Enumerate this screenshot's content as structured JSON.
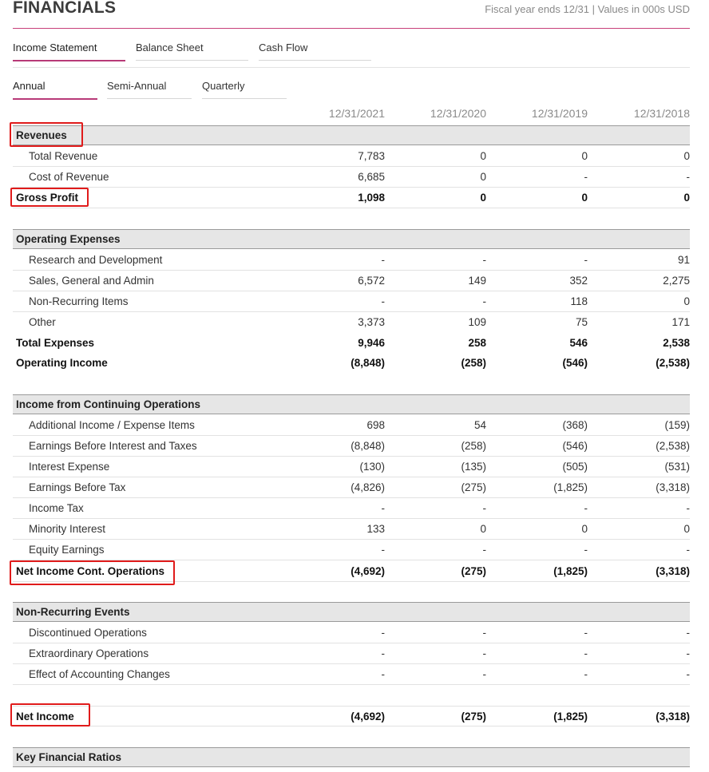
{
  "header": {
    "title": "FINANCIALS",
    "fiscal_note": "Fiscal year ends 12/31 | Values in 000s USD"
  },
  "statement_tabs": [
    {
      "label": "Income Statement",
      "active": true
    },
    {
      "label": "Balance Sheet",
      "active": false
    },
    {
      "label": "Cash Flow",
      "active": false
    }
  ],
  "period_tabs": [
    {
      "label": "Annual",
      "active": true
    },
    {
      "label": "Semi-Annual",
      "active": false
    },
    {
      "label": "Quarterly",
      "active": false
    }
  ],
  "columns": [
    "12/31/2021",
    "12/31/2020",
    "12/31/2019",
    "12/31/2018"
  ],
  "sections": {
    "revenues": {
      "title": "Revenues",
      "rows": [
        {
          "label": "Total Revenue",
          "values": [
            "7,783",
            "0",
            "0",
            "0"
          ]
        },
        {
          "label": "Cost of Revenue",
          "values": [
            "6,685",
            "0",
            "-",
            "-"
          ]
        },
        {
          "label": "Gross Profit",
          "values": [
            "1,098",
            "0",
            "0",
            "0"
          ]
        }
      ]
    },
    "operating": {
      "title": "Operating Expenses",
      "rows": [
        {
          "label": "Research and Development",
          "values": [
            "-",
            "-",
            "-",
            "91"
          ]
        },
        {
          "label": "Sales, General and Admin",
          "values": [
            "6,572",
            "149",
            "352",
            "2,275"
          ]
        },
        {
          "label": "Non-Recurring Items",
          "values": [
            "-",
            "-",
            "118",
            "0"
          ]
        },
        {
          "label": "Other",
          "values": [
            "3,373",
            "109",
            "75",
            "171"
          ]
        },
        {
          "label": "Total Expenses",
          "values": [
            "9,946",
            "258",
            "546",
            "2,538"
          ]
        },
        {
          "label": "Operating Income",
          "values": [
            "(8,848)",
            "(258)",
            "(546)",
            "(2,538)"
          ]
        }
      ]
    },
    "continuing": {
      "title": "Income from Continuing Operations",
      "rows": [
        {
          "label": "Additional Income / Expense Items",
          "values": [
            "698",
            "54",
            "(368)",
            "(159)"
          ]
        },
        {
          "label": "Earnings Before Interest and Taxes",
          "values": [
            "(8,848)",
            "(258)",
            "(546)",
            "(2,538)"
          ]
        },
        {
          "label": "Interest Expense",
          "values": [
            "(130)",
            "(135)",
            "(505)",
            "(531)"
          ]
        },
        {
          "label": "Earnings Before Tax",
          "values": [
            "(4,826)",
            "(275)",
            "(1,825)",
            "(3,318)"
          ]
        },
        {
          "label": "Income Tax",
          "values": [
            "-",
            "-",
            "-",
            "-"
          ]
        },
        {
          "label": "Minority Interest",
          "values": [
            "133",
            "0",
            "0",
            "0"
          ]
        },
        {
          "label": "Equity Earnings",
          "values": [
            "-",
            "-",
            "-",
            "-"
          ]
        },
        {
          "label": "Net Income Cont. Operations",
          "values": [
            "(4,692)",
            "(275)",
            "(1,825)",
            "(3,318)"
          ]
        }
      ]
    },
    "nonrecurring": {
      "title": "Non-Recurring Events",
      "rows": [
        {
          "label": "Discontinued Operations",
          "values": [
            "-",
            "-",
            "-",
            "-"
          ]
        },
        {
          "label": "Extraordinary Operations",
          "values": [
            "-",
            "-",
            "-",
            "-"
          ]
        },
        {
          "label": "Effect of Accounting Changes",
          "values": [
            "-",
            "-",
            "-",
            "-"
          ]
        }
      ]
    },
    "net_income": {
      "label": "Net Income",
      "values": [
        "(4,692)",
        "(275)",
        "(1,825)",
        "(3,318)"
      ]
    },
    "ratios": {
      "title": "Key Financial Ratios"
    }
  },
  "colors": {
    "accent": "#b83a78",
    "highlight_box": "#e01b1b",
    "section_band": "#e6e6e6"
  }
}
